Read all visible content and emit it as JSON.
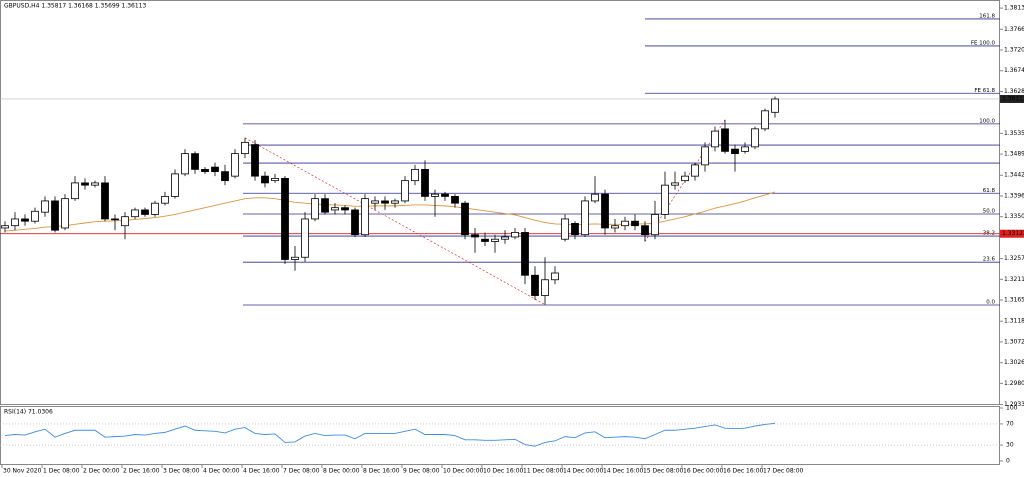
{
  "chart_data": {
    "type": "candlestick",
    "title": "GBPUSD,H4  1.35817 1.36168 1.35699 1.36113",
    "categories": [
      "30 Nov 2020",
      null,
      null,
      null,
      "1 Dec 08:00",
      null,
      null,
      null,
      "2 Dec 00:00",
      null,
      null,
      null,
      "2 Dec 16:00",
      null,
      null,
      null,
      "3 Dec 08:00",
      null,
      null,
      null,
      "4 Dec 00:00",
      null,
      null,
      null,
      "4 Dec 16:00",
      null,
      null,
      null,
      "7 Dec 08:00",
      null,
      null,
      null,
      "8 Dec 00:00",
      null,
      null,
      null,
      "8 Dec 16:00",
      null,
      null,
      null,
      "9 Dec 08:00",
      null,
      null,
      null,
      "10 Dec 00:00",
      null,
      null,
      null,
      "10 Dec 16:00",
      null,
      null,
      null,
      "11 Dec 08:00",
      null,
      null,
      null,
      "14 Dec 00:00",
      null,
      null,
      null,
      "14 Dec 16:00",
      null,
      null,
      null,
      "15 Dec 08:00",
      null,
      null,
      null,
      "16 Dec 00:00",
      null,
      null,
      null,
      "16 Dec 16:00",
      null,
      null,
      null,
      "17 Dec 08:00",
      null
    ],
    "open": [
      1.3325,
      1.333,
      1.3345,
      1.334,
      1.336,
      1.3385,
      1.3325,
      1.339,
      1.3425,
      1.342,
      1.3425,
      1.3345,
      1.333,
      1.335,
      1.3365,
      1.3355,
      1.338,
      1.3395,
      1.3445,
      1.349,
      1.3455,
      1.346,
      1.345,
      1.344,
      1.349,
      1.351,
      1.344,
      1.343,
      1.3435,
      1.3255,
      1.326,
      1.3345,
      1.339,
      1.3365,
      1.337,
      1.3365,
      1.331,
      1.338,
      1.3385,
      1.338,
      1.3385,
      1.343,
      1.3455,
      1.3395,
      1.34,
      1.3395,
      1.338,
      1.331,
      1.33,
      1.3295,
      1.33,
      1.3305,
      1.3315,
      1.322,
      1.3175,
      1.321,
      1.33,
      1.3335,
      1.331,
      1.3385,
      1.34,
      1.3325,
      1.333,
      1.334,
      1.333,
      1.331,
      1.3355,
      1.342,
      1.343,
      1.344,
      1.3465,
      1.3505,
      1.3545,
      1.35,
      1.3495,
      1.3505,
      1.3545,
      1.35817
    ],
    "high": [
      1.334,
      1.336,
      1.3355,
      1.337,
      1.3395,
      1.3395,
      1.34,
      1.344,
      1.3435,
      1.343,
      1.344,
      1.3355,
      1.336,
      1.337,
      1.337,
      1.3385,
      1.3405,
      1.3455,
      1.35,
      1.3495,
      1.346,
      1.347,
      1.3465,
      1.35,
      1.3525,
      1.352,
      1.345,
      1.3445,
      1.344,
      1.3285,
      1.336,
      1.34,
      1.34,
      1.338,
      1.3375,
      1.337,
      1.34,
      1.3395,
      1.3395,
      1.339,
      1.344,
      1.3465,
      1.3475,
      1.341,
      1.3405,
      1.34,
      1.3385,
      1.3325,
      1.3315,
      1.331,
      1.332,
      1.3325,
      1.3325,
      1.324,
      1.326,
      1.324,
      1.3355,
      1.334,
      1.3395,
      1.344,
      1.341,
      1.3345,
      1.335,
      1.3355,
      1.334,
      1.3385,
      1.345,
      1.345,
      1.345,
      1.347,
      1.3515,
      1.355,
      1.3565,
      1.351,
      1.3515,
      1.355,
      1.359,
      1.36168
    ],
    "low": [
      1.3315,
      1.332,
      1.333,
      1.3335,
      1.335,
      1.3315,
      1.332,
      1.3385,
      1.341,
      1.3415,
      1.334,
      1.332,
      1.33,
      1.3345,
      1.335,
      1.335,
      1.3375,
      1.339,
      1.344,
      1.3445,
      1.3445,
      1.344,
      1.342,
      1.3435,
      1.348,
      1.343,
      1.3415,
      1.3425,
      1.3245,
      1.323,
      1.325,
      1.334,
      1.3355,
      1.3355,
      1.3355,
      1.3305,
      1.3305,
      1.3365,
      1.3365,
      1.337,
      1.338,
      1.342,
      1.3385,
      1.335,
      1.3385,
      1.337,
      1.33,
      1.327,
      1.3285,
      1.327,
      1.329,
      1.33,
      1.32,
      1.3165,
      1.3155,
      1.32,
      1.3295,
      1.33,
      1.3305,
      1.338,
      1.331,
      1.3315,
      1.332,
      1.332,
      1.3295,
      1.33,
      1.3345,
      1.341,
      1.3425,
      1.343,
      1.345,
      1.3495,
      1.349,
      1.345,
      1.349,
      1.35,
      1.354,
      1.35699
    ],
    "close": [
      1.333,
      1.3345,
      1.334,
      1.3362,
      1.3385,
      1.332,
      1.339,
      1.3425,
      1.342,
      1.3425,
      1.3345,
      1.3345,
      1.335,
      1.3365,
      1.3355,
      1.338,
      1.3395,
      1.3445,
      1.349,
      1.3455,
      1.345,
      1.345,
      1.343,
      1.349,
      1.3515,
      1.344,
      1.3425,
      1.3435,
      1.3255,
      1.326,
      1.3345,
      1.339,
      1.336,
      1.337,
      1.3365,
      1.331,
      1.339,
      1.3385,
      1.338,
      1.3385,
      1.343,
      1.3455,
      1.3395,
      1.34,
      1.3395,
      1.338,
      1.331,
      1.3305,
      1.3295,
      1.33,
      1.3305,
      1.3315,
      1.322,
      1.3175,
      1.321,
      1.3225,
      1.3345,
      1.331,
      1.3385,
      1.34,
      1.3325,
      1.333,
      1.334,
      1.333,
      1.331,
      1.3355,
      1.342,
      1.3425,
      1.344,
      1.3465,
      1.3505,
      1.354,
      1.3495,
      1.349,
      1.3505,
      1.3545,
      1.3585,
      1.36113
    ],
    "ma": {
      "color": "#e0943a",
      "values": [
        1.3318,
        1.332,
        1.3322,
        1.3324,
        1.3327,
        1.3328,
        1.333,
        1.3333,
        1.3336,
        1.3339,
        1.334,
        1.3341,
        1.3342,
        1.3344,
        1.3346,
        1.3348,
        1.3351,
        1.3355,
        1.336,
        1.3365,
        1.337,
        1.3375,
        1.338,
        1.3385,
        1.339,
        1.3392,
        1.3392,
        1.339,
        1.3386,
        1.3382,
        1.338,
        1.3378,
        1.3377,
        1.3376,
        1.3375,
        1.3373,
        1.3373,
        1.3374,
        1.3374,
        1.3374,
        1.3375,
        1.3376,
        1.3376,
        1.3375,
        1.3374,
        1.3372,
        1.3369,
        1.3366,
        1.3363,
        1.336,
        1.3357,
        1.3354,
        1.3348,
        1.3342,
        1.3337,
        1.3334,
        1.3333,
        1.3332,
        1.3333,
        1.3334,
        1.3333,
        1.3333,
        1.3333,
        1.3334,
        1.3334,
        1.3336,
        1.334,
        1.3345,
        1.335,
        1.3356,
        1.3362,
        1.3369,
        1.3374,
        1.3379,
        1.3385,
        1.3392,
        1.3398,
        1.3405
      ]
    },
    "ylim": [
      1.2932,
      1.3831
    ],
    "yticks": [
      {
        "value": 1.3813,
        "label": "1.38130"
      },
      {
        "value": 1.3766,
        "label": "1.37660"
      },
      {
        "value": 1.372,
        "label": "1.37200"
      },
      {
        "value": 1.3674,
        "label": "1.36740"
      },
      {
        "value": 1.3628,
        "label": "1.36280"
      },
      {
        "value": 1.3535,
        "label": "1.35350"
      },
      {
        "value": 1.3489,
        "label": "1.34890"
      },
      {
        "value": 1.3442,
        "label": "1.34420"
      },
      {
        "value": 1.3396,
        "label": "1.33960"
      },
      {
        "value": 1.335,
        "label": "1.33500"
      },
      {
        "value": 1.3257,
        "label": "1.32570"
      },
      {
        "value": 1.3211,
        "label": "1.32110"
      },
      {
        "value": 1.3165,
        "label": "1.31650"
      },
      {
        "value": 1.3118,
        "label": "1.31180"
      },
      {
        "value": 1.3072,
        "label": "1.30720"
      },
      {
        "value": 1.3026,
        "label": "1.30260"
      },
      {
        "value": 1.298,
        "label": "1.29800"
      },
      {
        "value": 1.2933,
        "label": "1.29330"
      }
    ],
    "current_price": {
      "value": 1.36113,
      "label": "1.36113"
    },
    "marked_price": {
      "value": 1.33122,
      "label": "1.33122",
      "color": "#e02020"
    },
    "levels_color": "#2e2e9a",
    "levels": [
      {
        "value": 1.3789,
        "label": "161.8"
      },
      {
        "value": 1.3729,
        "label": "FE 100.0"
      },
      {
        "value": 1.3624,
        "label": "FE 61.8"
      },
      {
        "value": 1.3556,
        "label": "100.0"
      },
      {
        "value": 1.3509
      },
      {
        "value": 1.3469
      },
      {
        "value": 1.3402,
        "label": "61.8"
      },
      {
        "value": 1.3356,
        "label": "50.0"
      },
      {
        "value": 1.3307,
        "label": "38.2"
      },
      {
        "value": 1.3249,
        "label": "23.6"
      },
      {
        "value": 1.3154,
        "label": "0.0"
      }
    ],
    "rsi": {
      "title": "RSI(14) 71.0306",
      "color": "#3a8ee6",
      "values": [
        48,
        50,
        49,
        55,
        60,
        45,
        52,
        58,
        58,
        58,
        45,
        46,
        47,
        50,
        49,
        52,
        54,
        60,
        66,
        58,
        57,
        56,
        53,
        60,
        63,
        52,
        50,
        51,
        35,
        36,
        47,
        52,
        48,
        49,
        49,
        42,
        52,
        52,
        52,
        52,
        56,
        60,
        50,
        50,
        50,
        48,
        40,
        40,
        39,
        39,
        40,
        41,
        31,
        28,
        35,
        38,
        46,
        44,
        53,
        55,
        44,
        45,
        46,
        45,
        42,
        50,
        58,
        58,
        60,
        62,
        65,
        68,
        62,
        61,
        62,
        66,
        69,
        71.0306
      ],
      "ylim": [
        0,
        100
      ],
      "yticks": [
        100,
        70,
        30,
        0
      ],
      "levels": [
        70,
        30
      ]
    }
  }
}
